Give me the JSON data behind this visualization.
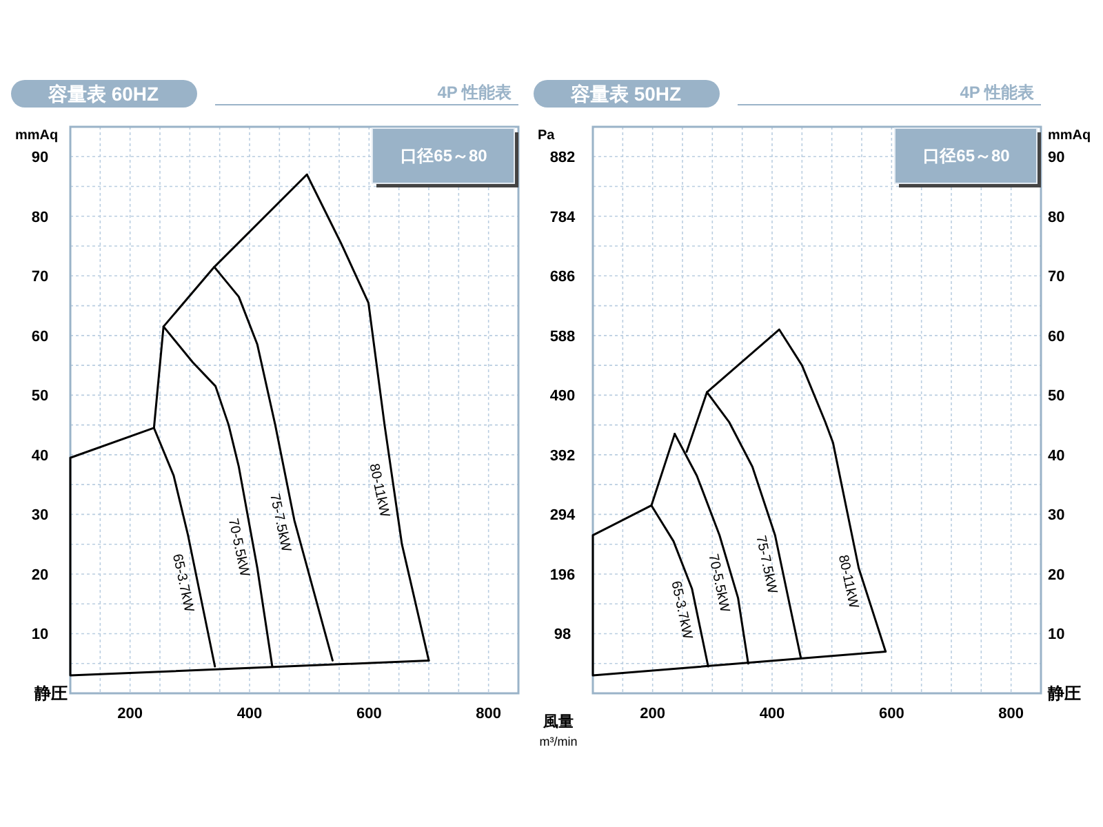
{
  "chart_data": [
    {
      "type": "line",
      "title": "容量表 60HZ",
      "subtitle": "4P 性能表",
      "xlabel": "風量 m³/min",
      "ylabel": "mmAq",
      "xlim": [
        100,
        850
      ],
      "xticks": [
        200,
        400,
        600,
        800
      ],
      "ylim": [
        0,
        95
      ],
      "yticks": [
        10,
        20,
        30,
        40,
        50,
        60,
        70,
        80,
        90
      ],
      "grid": true,
      "series": [
        {
          "color": "#000000",
          "x": [
            700,
            100,
            100,
            240,
            256,
            341,
            496
          ],
          "values": [
            5.5,
            3,
            39.5,
            44.5,
            61.5,
            71.5,
            87
          ]
        },
        {
          "name": "80-11kW",
          "color": "#000000",
          "x": [
            496,
            553,
            599,
            626,
            655,
            700
          ],
          "values": [
            87,
            75.5,
            65.5,
            45,
            25,
            5.5
          ]
        },
        {
          "name": "75-7.5kW",
          "color": "#000000",
          "x": [
            341,
            382,
            413,
            443,
            475,
            539
          ],
          "values": [
            71.5,
            66.5,
            58.5,
            45,
            29,
            5.5
          ]
        },
        {
          "name": "70-5.5kW",
          "color": "#000000",
          "x": [
            256,
            305,
            343,
            365,
            382,
            413,
            438
          ],
          "values": [
            61.5,
            55.5,
            51.5,
            45,
            38,
            21,
            4.5
          ]
        },
        {
          "name": "65-3.7kW",
          "color": "#000000",
          "x": [
            240,
            273,
            297,
            342
          ],
          "values": [
            44.5,
            36.5,
            26.5,
            4.5
          ]
        }
      ],
      "annotations": [
        "口径65～80",
        "静圧"
      ]
    },
    {
      "type": "line",
      "title": "容量表 50HZ",
      "subtitle": "4P 性能表",
      "ylabel": "Pa",
      "y2label": "mmAq",
      "xlim": [
        100,
        850
      ],
      "xticks": [
        200,
        400,
        600,
        800
      ],
      "ylim": [
        0,
        931
      ],
      "yticks": [
        98,
        196,
        294,
        392,
        490,
        588,
        686,
        784,
        882
      ],
      "y2lim": [
        0,
        95
      ],
      "y2ticks": [
        10,
        20,
        30,
        40,
        50,
        60,
        70,
        80,
        90
      ],
      "grid": true,
      "series": [
        {
          "color": "#000000",
          "axis": "y2",
          "x": [
            590,
            100,
            100,
            198,
            237
          ],
          "values": [
            7,
            3,
            26.5,
            31.5,
            43.5
          ]
        },
        {
          "name": "70-5.5kW",
          "color": "#000000",
          "axis": "y2",
          "x": [
            237,
            274,
            312,
            343,
            360
          ],
          "values": [
            43.5,
            36.5,
            26.5,
            16,
            5
          ]
        },
        {
          "name": "65-3.7kW",
          "color": "#000000",
          "axis": "y2",
          "x": [
            198,
            235,
            266,
            293
          ],
          "values": [
            31.5,
            25.5,
            17.5,
            4.5
          ]
        },
        {
          "name": "80-11kW",
          "color": "#000000",
          "axis": "y2",
          "x": [
            257,
            291,
            412,
            450,
            489,
            502,
            545,
            590
          ],
          "values": [
            40.5,
            50.5,
            61,
            55,
            45.5,
            42,
            21,
            7
          ]
        },
        {
          "name": "75-7.5kW",
          "color": "#000000",
          "axis": "y2",
          "x": [
            291,
            328,
            367,
            405,
            448
          ],
          "values": [
            50.5,
            45.5,
            38,
            26.5,
            6
          ]
        }
      ],
      "annotations": [
        "口径65～80",
        "静圧"
      ]
    }
  ]
}
